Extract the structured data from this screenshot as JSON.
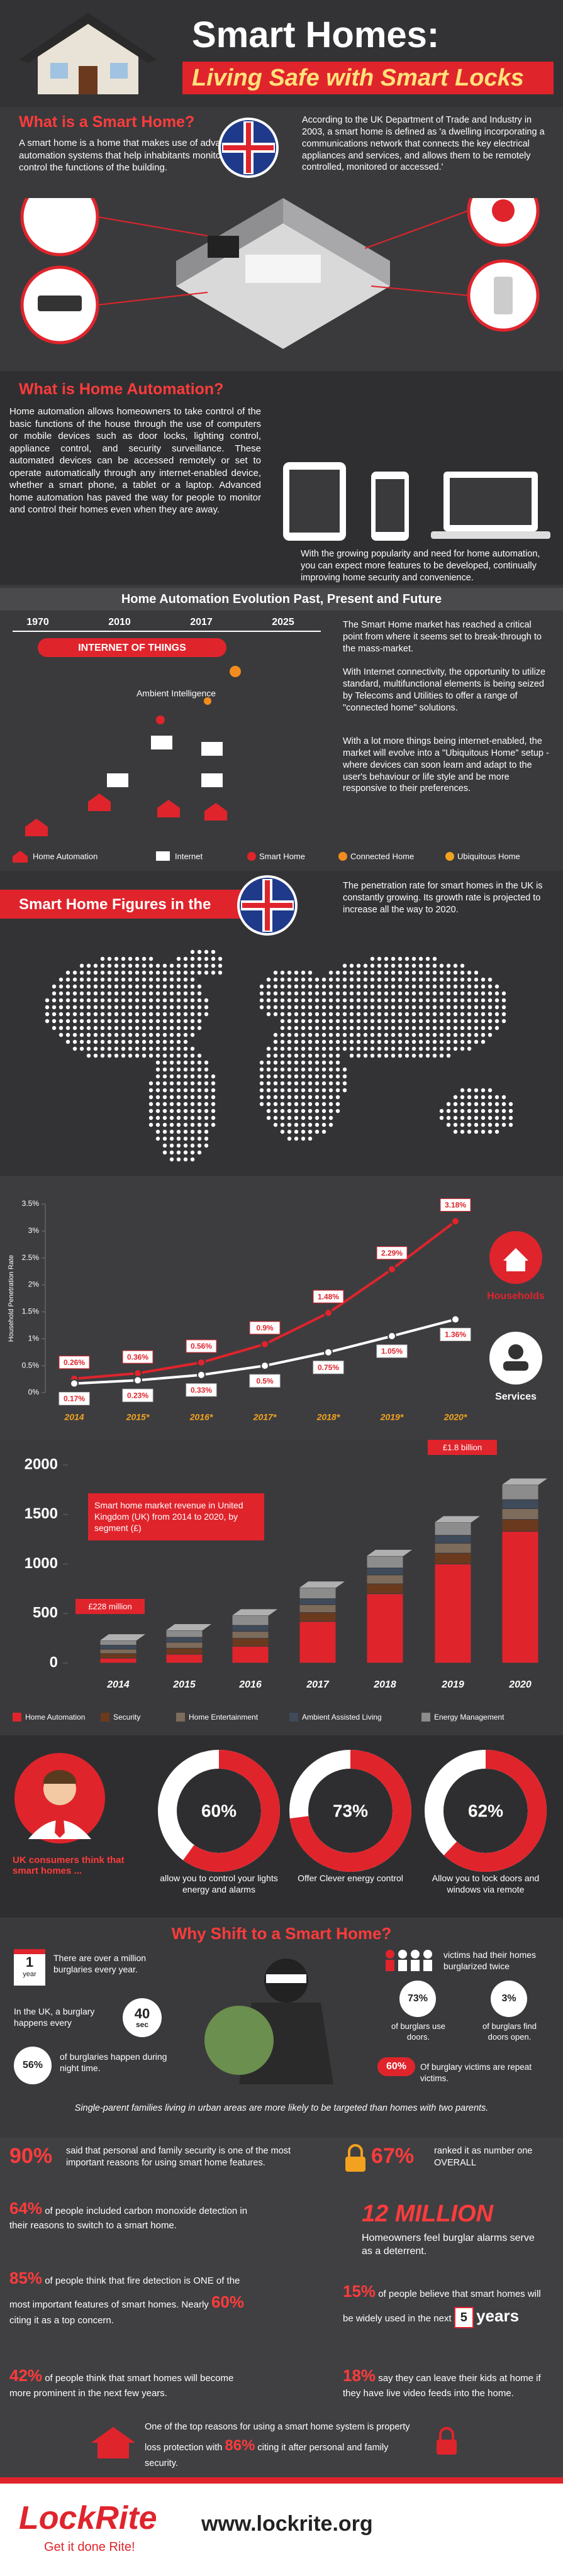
{
  "header": {
    "title": "Smart Homes:",
    "subtitle": "Living Safe with Smart Locks"
  },
  "smart_home": {
    "heading": "What is a Smart Home?",
    "text": "A smart home is a home that makes use of advanced automation systems that help inhabitants monitor and control the functions of the building.",
    "quote": "According to the UK Department of Trade and Industry in 2003, a smart home is defined as 'a dwelling incorporating a communications network that connects the key electrical appliances and services, and allows them to be remotely controlled, monitored or accessed.'"
  },
  "automation": {
    "heading": "What is Home Automation?",
    "text": "Home automation allows homeowners to take control of the basic functions of the house through the use of computers or mobile devices such as door locks, lighting control, appliance control, and security surveillance. These automated devices can be accessed remotely or set to operate automatically through any internet-enabled device, whether a smart phone, a tablet or a laptop. Advanced home automation has paved the way for people to monitor and control their homes even when they are away.",
    "note": "With the growing popularity and need for home automation, you can expect more features to be developed, continually improving home security and convenience."
  },
  "evolution": {
    "heading": "Home Automation Evolution Past, Present and Future",
    "years": [
      "1970",
      "2010",
      "2017",
      "2025"
    ],
    "iot": "INTERNET OF THINGS",
    "ambient": "Ambient Intelligence",
    "legend": [
      "Home Automation",
      "Internet",
      "Smart Home",
      "Connected Home",
      "Ubiquitous Home"
    ],
    "paragraphs": [
      "The Smart Home market has reached a critical point from where it seems set to break-through to the mass-market.",
      "With Internet connectivity, the opportunity to utilize standard, multifunctional elements is being seized by Telecoms and Utilities to offer a range of \"connected home\" solutions.",
      "With a lot more things being internet-enabled, the market will evolve into a \"Ubiquitous Home\" setup - where devices can soon learn and adapt to the user's behaviour or life style and be more responsive to their preferences."
    ]
  },
  "figures": {
    "heading": "Smart Home Figures in the",
    "text": "The penetration rate for smart homes in the UK is constantly growing. Its growth rate is projected to increase all the way to 2020."
  },
  "chart_data": [
    {
      "type": "line",
      "ylabel": "Household Penetration Rate",
      "categories": [
        "2014",
        "2015*",
        "2016*",
        "2017*",
        "2018*",
        "2019*",
        "2020*"
      ],
      "ylim": [
        0,
        3.5
      ],
      "yticks": [
        {
          "value": 0,
          "label": "0%"
        },
        {
          "value": 0.5,
          "label": "0.5%"
        },
        {
          "value": 1,
          "label": "1%"
        },
        {
          "value": 1.5,
          "label": "1.5%"
        },
        {
          "value": 2,
          "label": "2%"
        },
        {
          "value": 2.5,
          "label": "2.5%"
        },
        {
          "value": 3,
          "label": "3%"
        },
        {
          "value": 3.5,
          "label": "3.5%"
        }
      ],
      "series": [
        {
          "name": "Households",
          "color": "#e0242c",
          "values": [
            0.26,
            0.36,
            0.56,
            0.9,
            1.48,
            2.29,
            3.18
          ],
          "value_labels": [
            "0.26%",
            "0.36%",
            "0.56%",
            "0.9%",
            "1.48%",
            "2.29%",
            "3.18%"
          ]
        },
        {
          "name": "Services",
          "color": "#ffffff",
          "values": [
            0.17,
            0.23,
            0.33,
            0.5,
            0.75,
            1.05,
            1.36
          ],
          "value_labels": [
            "0.17%",
            "0.23%",
            "0.33%",
            "0.5%",
            "0.75%",
            "1.05%",
            "1.36%"
          ]
        }
      ]
    },
    {
      "type": "stacked_bar",
      "title": "Smart home market revenue in United Kingdom (UK) from 2014 to 2020, by segment (£)",
      "annotations": [
        "£228 million",
        "£1.8 billion"
      ],
      "categories": [
        "2014",
        "2015",
        "2016",
        "2017",
        "2018",
        "2019",
        "2020"
      ],
      "ylim": [
        0,
        2000
      ],
      "yticks": [
        0,
        500,
        1000,
        1500,
        2000
      ],
      "series": [
        {
          "name": "Home Automation",
          "color": "#e0242c",
          "values": [
            50,
            90,
            170,
            420,
            700,
            1000,
            1330
          ]
        },
        {
          "name": "Security",
          "color": "#6b3a1e",
          "values": [
            45,
            60,
            80,
            90,
            100,
            110,
            120
          ]
        },
        {
          "name": "Home Entertainment",
          "color": "#7d6b5b",
          "values": [
            45,
            60,
            70,
            80,
            90,
            100,
            110
          ]
        },
        {
          "name": "Ambient Assisted Living",
          "color": "#3f4a5a",
          "values": [
            40,
            50,
            60,
            60,
            70,
            80,
            90
          ]
        },
        {
          "name": "Energy Management",
          "color": "#8c8c8c",
          "values": [
            48,
            70,
            100,
            110,
            120,
            130,
            150
          ]
        }
      ]
    },
    {
      "type": "donut",
      "title": "UK consumers think that smart homes ...",
      "categories": [
        "allow you to control your lights energy and alarms",
        "Offer Clever energy control",
        "Allow you to lock doors and windows via remote"
      ],
      "values": [
        60,
        73,
        62
      ],
      "value_labels": [
        "60%",
        "73%",
        "62%"
      ],
      "color": "#e0242c"
    }
  ],
  "why_shift": {
    "heading": "Why Shift to a Smart Home?",
    "calendar": "1",
    "calendar_unit": "year",
    "burglaries_year": "There are over a million burglaries every year.",
    "burglary_every": "In the UK, a burglary happens every",
    "every_value": "40",
    "every_unit": "sec",
    "night_value": "56%",
    "night_text": "of burglaries happen during night time.",
    "twice_text": "victims had their homes burglarized twice",
    "doors_value": "73%",
    "doors_text": "of burglars use doors.",
    "open_value": "3%",
    "open_text": "of burglars find doors open.",
    "repeat_value": "60%",
    "repeat_text": "Of burglary victims are repeat victims.",
    "single_parent": "Single-parent families living in urban areas are more likely to be targeted than homes with two parents."
  },
  "stats": {
    "security_value": "90%",
    "security_text": "said that personal and family security is one of the most important reasons for using smart home features.",
    "overall_value": "67%",
    "overall_text": "ranked it as number one OVERALL",
    "co_value": "64%",
    "co_text": "of people included carbon monoxide detection in their reasons to switch to a smart home.",
    "million_value": "12 MILLION",
    "million_text": "Homeowners feel burglar alarms serve as a deterrent.",
    "fire_value": "85%",
    "fire_text": "of people think that fire detection is ONE of the most important features of smart homes. Nearly",
    "concern_value": "60%",
    "concern_text": "citing it as a top concern.",
    "widely_value": "15%",
    "widely_text": "of people believe that smart homes will be widely used in the next",
    "years_value": "5",
    "years_unit": "years",
    "prominent_value": "42%",
    "prominent_text": "of people think that smart homes will become more prominent in the next few years.",
    "kids_value": "18%",
    "kids_text": "say they can leave their kids at home if they have live video feeds into the home.",
    "loss_text": "One of the top reasons for using a smart home system is property loss protection with",
    "loss_value": "86%",
    "loss_tail": "citing it after personal and family security."
  },
  "footer": {
    "brand": "LockRite",
    "tagline": "Get it done Rite!",
    "url": "www.lockrite.org"
  }
}
